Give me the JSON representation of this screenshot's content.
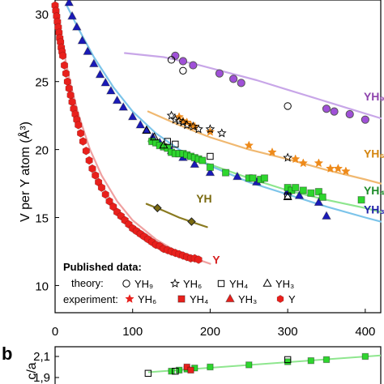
{
  "chart_data": [
    {
      "type": "scatter",
      "ylabel": "V per Y atom (Å³)",
      "xlim": [
        0,
        420
      ],
      "ylim": [
        8,
        31
      ],
      "x_ticks": [
        0,
        100,
        200,
        300,
        400
      ],
      "y_ticks": [
        10,
        15,
        20,
        25,
        30
      ],
      "grid": false,
      "curve_labels": [
        {
          "text": "YH₉",
          "color": "#8e44ad",
          "x": 398,
          "y": 23.6
        },
        {
          "text": "YH₆",
          "color": "#d4850f",
          "x": 398,
          "y": 19.4
        },
        {
          "text": "YH₄",
          "color": "#1e8c2a",
          "x": 398,
          "y": 16.7
        },
        {
          "text": "YH₃",
          "color": "#1f1fa8",
          "x": 398,
          "y": 15.3
        },
        {
          "text": "YH",
          "color": "#7a6a10",
          "x": 182,
          "y": 16.1
        },
        {
          "text": "Y",
          "color": "#d62020",
          "x": 203,
          "y": 11.6
        }
      ],
      "fits": [
        {
          "name": "YH₉",
          "color": "#c8a6e8",
          "x": [
            90,
            140,
            180,
            220,
            260,
            300,
            340,
            380,
            420
          ],
          "y": [
            27.1,
            26.8,
            26.3,
            25.7,
            25.1,
            24.4,
            23.7,
            23.0,
            22.3
          ]
        },
        {
          "name": "YH₆",
          "color": "#f0b870",
          "x": [
            120,
            160,
            200,
            250,
            300,
            350,
            400,
            420
          ],
          "y": [
            22.8,
            21.8,
            20.9,
            20.0,
            19.3,
            18.5,
            17.8,
            17.5
          ]
        },
        {
          "name": "YH₄",
          "color": "#8ee68e",
          "x": [
            120,
            150,
            200,
            250,
            300,
            350,
            400,
            420
          ],
          "y": [
            20.6,
            19.8,
            18.9,
            17.9,
            17.0,
            16.3,
            15.7,
            15.4
          ]
        },
        {
          "name": "YH₃",
          "color": "#7cc4ea",
          "x": [
            15,
            30,
            50,
            75,
            100,
            130,
            160,
            200,
            250,
            300,
            350,
            400,
            420
          ],
          "y": [
            30.6,
            28.9,
            26.8,
            24.6,
            22.8,
            21.2,
            20.0,
            18.8,
            17.6,
            16.7,
            15.8,
            15.0,
            14.7
          ]
        },
        {
          "name": "YH",
          "color": "#8a7a20",
          "x": [
            118,
            140,
            160,
            180,
            196
          ],
          "y": [
            16.0,
            15.5,
            15.0,
            14.6,
            14.3
          ]
        },
        {
          "name": "Y",
          "color": "#f0a0a0",
          "x": [
            0,
            5,
            10,
            20,
            30,
            45,
            60,
            80,
            100,
            130,
            160,
            200
          ],
          "y": [
            30.8,
            29.1,
            27.5,
            24.8,
            22.6,
            20.0,
            18.1,
            16.2,
            14.8,
            13.4,
            12.4,
            11.6
          ]
        }
      ],
      "series": [
        {
          "name": "Y",
          "kind": "experiment",
          "marker": "hexagon",
          "color": "#e8201c",
          "filled": true,
          "x": [
            0,
            1,
            2,
            3,
            4,
            5,
            6,
            7,
            8,
            9,
            10,
            12,
            14,
            16,
            18,
            20,
            22,
            24,
            26,
            28,
            30,
            33,
            36,
            40,
            44,
            48,
            52,
            56,
            60,
            65,
            70,
            75,
            80,
            85,
            90,
            95,
            100,
            105,
            110,
            115,
            120,
            125,
            130,
            135,
            140,
            145,
            150,
            155,
            160,
            165,
            170,
            175,
            180,
            185
          ],
          "y": [
            30.6,
            30.2,
            29.8,
            29.4,
            29.0,
            28.6,
            28.2,
            27.9,
            27.5,
            27.2,
            26.9,
            26.2,
            25.6,
            25.0,
            24.5,
            24.0,
            23.5,
            23.0,
            22.6,
            22.2,
            21.8,
            21.2,
            20.6,
            19.9,
            19.2,
            18.6,
            18.1,
            17.6,
            17.2,
            16.7,
            16.2,
            15.8,
            15.4,
            15.1,
            14.8,
            14.5,
            14.2,
            14.0,
            13.8,
            13.6,
            13.4,
            13.2,
            13.0,
            12.9,
            12.7,
            12.6,
            12.5,
            12.4,
            12.3,
            12.2,
            12.1,
            12.0,
            12.0,
            11.9
          ]
        },
        {
          "name": "YH₃",
          "kind": "experiment",
          "marker": "triangle",
          "color": "#1a1ab8",
          "filled": true,
          "x": [
            18,
            22,
            28,
            35,
            42,
            50,
            58,
            65,
            72,
            80,
            88,
            100,
            110,
            118,
            126,
            135,
            150,
            165,
            180,
            200,
            235,
            260,
            300,
            315,
            340,
            350
          ],
          "y": [
            30.8,
            29.8,
            29.0,
            28.0,
            27.2,
            26.3,
            25.5,
            24.9,
            24.3,
            23.6,
            23.1,
            22.4,
            21.8,
            21.4,
            20.9,
            20.5,
            19.9,
            19.4,
            18.9,
            18.3,
            18.0,
            17.6,
            16.9,
            16.6,
            16.1,
            15.1
          ]
        },
        {
          "name": "YH₄",
          "kind": "experiment",
          "marker": "square",
          "color": "#2ed62e",
          "filled": true,
          "x": [
            125,
            130,
            135,
            140,
            145,
            150,
            155,
            160,
            165,
            170,
            175,
            180,
            185,
            190,
            200,
            220,
            250,
            255,
            265,
            270,
            300,
            305,
            310,
            320,
            330,
            340,
            345,
            395
          ],
          "y": [
            20.6,
            20.5,
            20.3,
            20.2,
            20.1,
            19.8,
            19.7,
            19.7,
            19.7,
            19.6,
            19.5,
            19.4,
            19.3,
            19.2,
            18.7,
            18.3,
            17.9,
            17.9,
            17.8,
            17.9,
            17.2,
            17.0,
            17.2,
            17.0,
            16.8,
            16.9,
            16.5,
            16.3
          ]
        },
        {
          "name": "YH₆",
          "kind": "experiment",
          "marker": "star",
          "color": "#ee8a1a",
          "filled": true,
          "x": [
            160,
            165,
            170,
            175,
            180,
            200,
            250,
            280,
            310,
            320,
            340,
            355,
            365,
            375
          ],
          "y": [
            22.4,
            22.1,
            22.0,
            21.8,
            21.7,
            21.3,
            20.3,
            19.8,
            19.3,
            19.0,
            19.0,
            18.6,
            18.6,
            18.4
          ]
        },
        {
          "name": "YH₉",
          "kind": "experiment",
          "marker": "circle",
          "color": "#a050d8",
          "filled": true,
          "x": [
            155,
            165,
            178,
            212,
            230,
            240,
            350,
            360,
            380,
            400
          ],
          "y": [
            26.9,
            26.5,
            26.2,
            25.6,
            25.2,
            24.9,
            23.0,
            22.8,
            22.6,
            22.2
          ]
        },
        {
          "name": "YH",
          "kind": "experiment",
          "marker": "diamond",
          "color": "#7a6a10",
          "filled": true,
          "x": [
            132,
            176
          ],
          "y": [
            15.7,
            14.7
          ]
        },
        {
          "name": "YH₉",
          "kind": "theory",
          "marker": "circle",
          "color": "#000000",
          "filled": false,
          "x": [
            150,
            165,
            300
          ],
          "y": [
            26.6,
            25.8,
            23.2
          ]
        },
        {
          "name": "YH₆",
          "kind": "theory",
          "marker": "star",
          "color": "#000000",
          "filled": false,
          "x": [
            150,
            155,
            160,
            165,
            170,
            178,
            185,
            200,
            215,
            300
          ],
          "y": [
            22.5,
            22.2,
            22.1,
            22.0,
            21.8,
            21.7,
            21.5,
            21.5,
            21.2,
            19.4
          ]
        },
        {
          "name": "YH₄",
          "kind": "theory",
          "marker": "square",
          "color": "#000000",
          "filled": false,
          "x": [
            145,
            155,
            200,
            300
          ],
          "y": [
            20.6,
            20.4,
            19.5,
            16.6
          ]
        },
        {
          "name": "YH₃",
          "kind": "theory",
          "marker": "triangle",
          "color": "#000000",
          "filled": false,
          "x": [
            118,
            128,
            140,
            300
          ],
          "y": [
            21.4,
            20.9,
            20.3,
            16.5
          ]
        }
      ]
    },
    {
      "type": "scatter",
      "ylabel": "c/a",
      "xlim": [
        0,
        420
      ],
      "y_ticks_text": [
        "2,1",
        "1,9"
      ],
      "series": [
        {
          "name": "YH₄",
          "kind": "experiment",
          "marker": "square",
          "color": "#2ed62e",
          "filled": true,
          "x": [
            150,
            160,
            170,
            180,
            200,
            250,
            300,
            330,
            350,
            400
          ],
          "y": [
            1.96,
            1.97,
            1.98,
            1.99,
            2.0,
            2.02,
            2.05,
            2.06,
            2.07,
            2.1
          ]
        },
        {
          "name": "YH₆",
          "kind": "experiment",
          "marker": "square",
          "color": "#e8201c",
          "filled": true,
          "x": [
            170,
            175
          ],
          "y": [
            2.0,
            1.97
          ]
        },
        {
          "name": "YH₄",
          "kind": "theory",
          "marker": "square",
          "color": "#000000",
          "filled": false,
          "x": [
            120,
            155,
            300
          ],
          "y": [
            1.94,
            1.96,
            2.07
          ]
        }
      ]
    }
  ],
  "legend": {
    "title": "Published data:",
    "theory_label": "theory:",
    "experiment_label": "experiment:",
    "theory_items": [
      {
        "marker": "circle",
        "label": "YH₉"
      },
      {
        "marker": "star",
        "label": "YH₆"
      },
      {
        "marker": "square",
        "label": "YH₄"
      },
      {
        "marker": "triangle",
        "label": "YH₃"
      }
    ],
    "experiment_items": [
      {
        "marker": "star",
        "color": "#e8201c",
        "label": "YH₆"
      },
      {
        "marker": "square",
        "color": "#e8201c",
        "label": "YH₄"
      },
      {
        "marker": "triangle",
        "color": "#e8201c",
        "label": "YH₃"
      },
      {
        "marker": "hexagon",
        "color": "#e8201c",
        "label": "Y"
      }
    ]
  },
  "panel_b_label": "b"
}
